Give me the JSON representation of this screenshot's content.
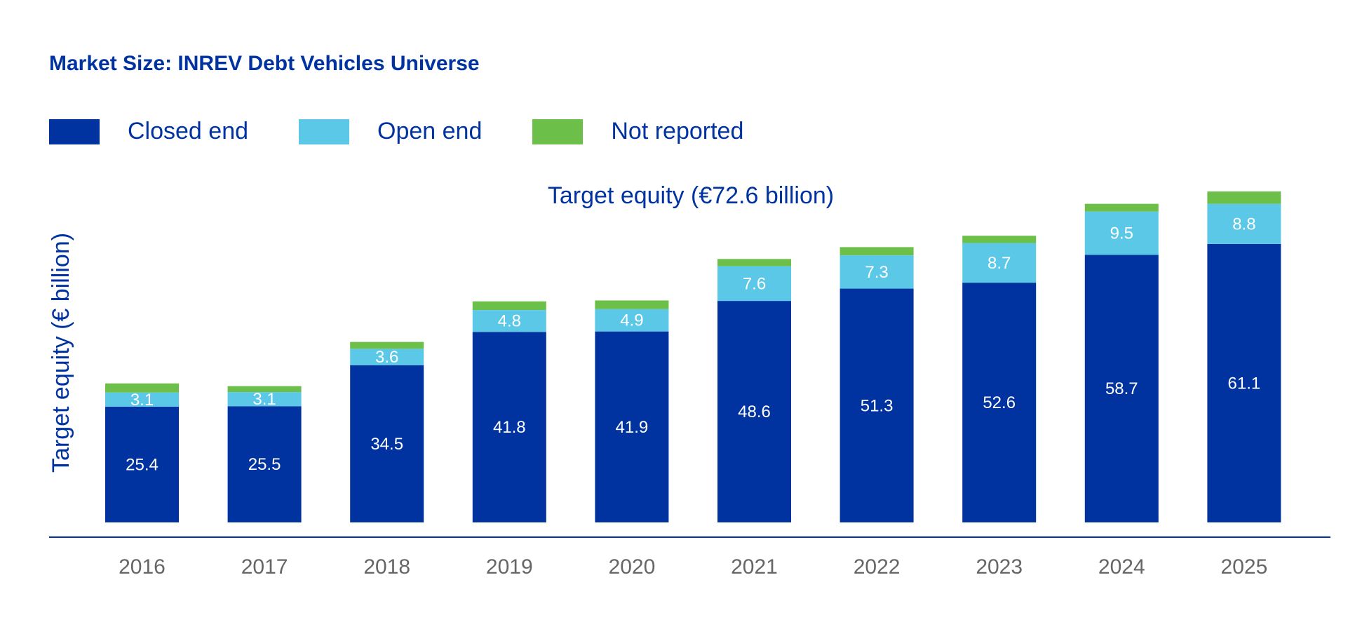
{
  "chart_data": {
    "type": "bar",
    "stacked": true,
    "title": "Market Size: INREV Debt Vehicles Universe",
    "subtitle": "Target equity (€72.6 billion)",
    "ylabel": "Target equity (€ billion)",
    "xlabel": "",
    "categories": [
      "2016",
      "2017",
      "2018",
      "2019",
      "2020",
      "2021",
      "2022",
      "2023",
      "2024",
      "2025"
    ],
    "series": [
      {
        "name": "Closed end",
        "color": "#0033A0",
        "values": [
          25.4,
          25.5,
          34.5,
          41.8,
          41.9,
          48.6,
          51.3,
          52.6,
          58.7,
          61.1
        ],
        "labels": [
          "25.4",
          "25.5",
          "34.5",
          "41.8",
          "41.9",
          "48.6",
          "51.3",
          "52.6",
          "58.7",
          "61.1"
        ]
      },
      {
        "name": "Open end",
        "color": "#5BC8E8",
        "values": [
          3.1,
          3.1,
          3.6,
          4.8,
          4.9,
          7.6,
          7.3,
          8.7,
          9.5,
          8.8
        ],
        "labels": [
          "3.1",
          "3.1",
          "3.6",
          "4.8",
          "4.9",
          "7.6",
          "7.3",
          "8.7",
          "9.5",
          "8.8"
        ]
      },
      {
        "name": "Not reported",
        "color": "#6CC04A",
        "values": [
          2.0,
          1.3,
          1.5,
          1.9,
          1.9,
          1.6,
          1.8,
          1.6,
          1.7,
          2.7
        ]
      }
    ],
    "ylim": [
      0,
      75
    ],
    "grid": false,
    "legend_position": "top-left"
  }
}
